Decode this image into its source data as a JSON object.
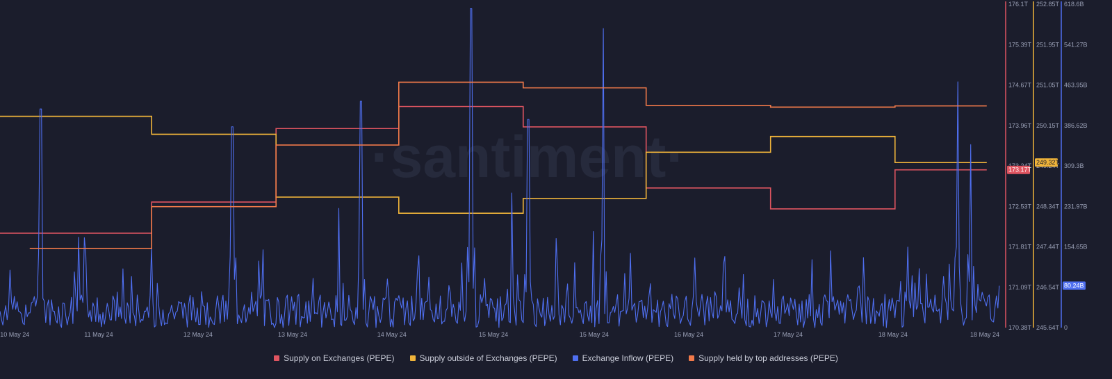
{
  "chart_data": {
    "type": "line",
    "watermark": "·santiment·",
    "x_ticks": [
      "10 May 24",
      "11 May 24",
      "12 May 24",
      "13 May 24",
      "14 May 24",
      "15 May 24",
      "15 May 24",
      "16 May 24",
      "17 May 24",
      "18 May 24",
      "18 May 24"
    ],
    "axes": {
      "supply_on_exchanges": {
        "ticks": [
          "176.1T",
          "175.39T",
          "174.67T",
          "173.96T",
          "173.24T",
          "172.53T",
          "171.81T",
          "171.09T",
          "170.38T"
        ],
        "min": 170.38,
        "max": 176.1,
        "unit": "T",
        "color": "#e05561",
        "current_label": "173.17T"
      },
      "supply_outside_exchanges": {
        "ticks": [
          "252.85T",
          "251.95T",
          "251.05T",
          "250.15T",
          "249.24T",
          "248.34T",
          "247.44T",
          "246.54T",
          "245.64T"
        ],
        "min": 245.64,
        "max": 252.85,
        "unit": "T",
        "color": "#f0b43a",
        "current_label": "249.32T"
      },
      "exchange_inflow": {
        "ticks": [
          "618.6B",
          "541.27B",
          "463.95B",
          "386.62B",
          "309.3B",
          "231.97B",
          "154.65B",
          "77.32B",
          "0"
        ],
        "min": 0,
        "max": 618.6,
        "unit": "B",
        "color": "#4f6ff0",
        "current_label": "80.24B"
      }
    },
    "series": [
      {
        "name": "Supply on Exchanges (PEPE)",
        "color": "#e05561",
        "axis": "supply_on_exchanges",
        "steps": [
          {
            "x0": 0,
            "x1": 0.1515,
            "y": 172.05
          },
          {
            "x0": 0.1515,
            "x1": 0.2758,
            "y": 172.6
          },
          {
            "x0": 0.2758,
            "x1": 0.3985,
            "y": 173.9
          },
          {
            "x0": 0.3985,
            "x1": 0.5228,
            "y": 174.29
          },
          {
            "x0": 0.5228,
            "x1": 0.6456,
            "y": 173.93
          },
          {
            "x0": 0.6456,
            "x1": 0.7699,
            "y": 172.85
          },
          {
            "x0": 0.7699,
            "x1": 0.8943,
            "y": 172.48
          },
          {
            "x0": 0.8943,
            "x1": 0.986,
            "y": 173.17
          }
        ]
      },
      {
        "name": "Supply outside of Exchanges (PEPE)",
        "color": "#f0b43a",
        "axis": "supply_outside_exchanges",
        "steps": [
          {
            "x0": 0,
            "x1": 0.1515,
            "y": 250.35
          },
          {
            "x0": 0.1515,
            "x1": 0.2758,
            "y": 249.95
          },
          {
            "x0": 0.2758,
            "x1": 0.3985,
            "y": 248.55
          },
          {
            "x0": 0.3985,
            "x1": 0.5228,
            "y": 248.19
          },
          {
            "x0": 0.5228,
            "x1": 0.6456,
            "y": 248.52
          },
          {
            "x0": 0.6456,
            "x1": 0.7699,
            "y": 249.55
          },
          {
            "x0": 0.7699,
            "x1": 0.8943,
            "y": 249.9
          },
          {
            "x0": 0.8943,
            "x1": 0.986,
            "y": 249.32
          }
        ]
      },
      {
        "name": "Exchange Inflow (PEPE)",
        "color": "#4f6ff0",
        "axis": "exchange_inflow",
        "peaks": [
          {
            "x": 0.0409,
            "y": 418
          },
          {
            "x": 0.0845,
            "y": 172
          },
          {
            "x": 0.2322,
            "y": 384
          },
          {
            "x": 0.3605,
            "y": 433
          },
          {
            "x": 0.4711,
            "y": 610
          },
          {
            "x": 0.5281,
            "y": 398
          },
          {
            "x": 0.6026,
            "y": 572
          },
          {
            "x": 0.9573,
            "y": 470
          },
          {
            "x": 0.9699,
            "y": 350
          }
        ],
        "base_level": 40,
        "last_value": 80.24
      },
      {
        "name": "Supply held by top addresses (PEPE)",
        "color": "#f27a4a",
        "axis": "supply_on_exchanges",
        "steps": [
          {
            "x0": 0.0297,
            "x1": 0.1515,
            "y": 171.78
          },
          {
            "x0": 0.1515,
            "x1": 0.2758,
            "y": 172.52
          },
          {
            "x0": 0.2758,
            "x1": 0.3985,
            "y": 173.61
          },
          {
            "x0": 0.3985,
            "x1": 0.5228,
            "y": 174.72
          },
          {
            "x0": 0.5228,
            "x1": 0.6456,
            "y": 174.62
          },
          {
            "x0": 0.6456,
            "x1": 0.7699,
            "y": 174.31
          },
          {
            "x0": 0.7699,
            "x1": 0.8943,
            "y": 174.28
          },
          {
            "x0": 0.8943,
            "x1": 0.986,
            "y": 174.3
          }
        ]
      }
    ],
    "legend_position": "bottom"
  }
}
